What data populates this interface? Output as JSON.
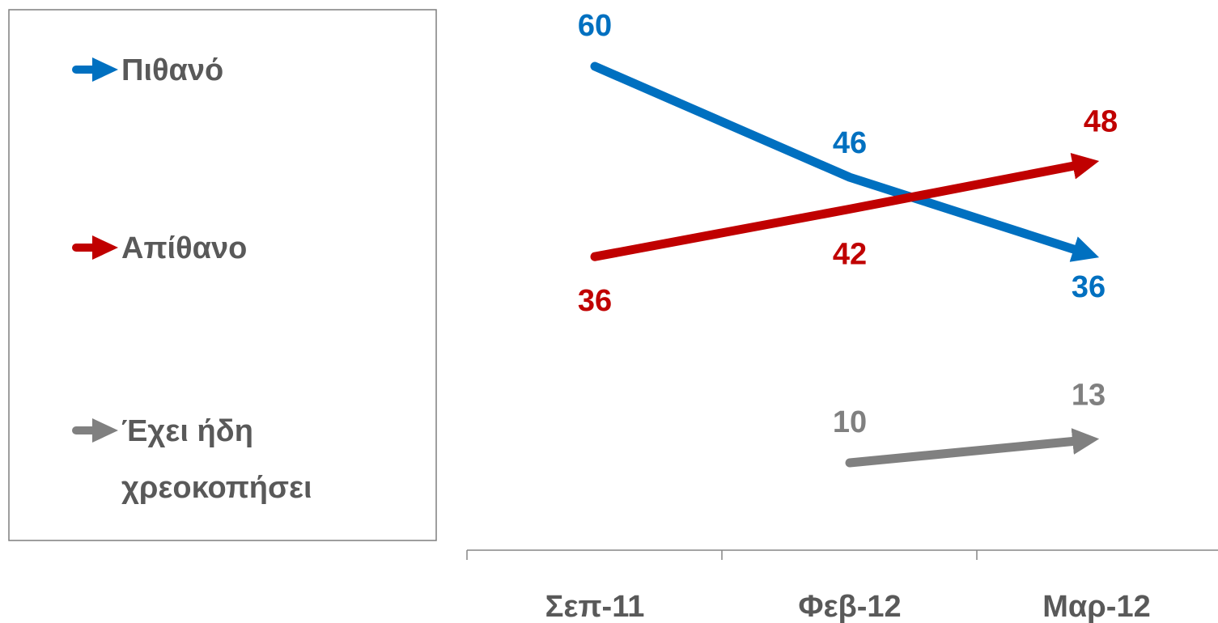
{
  "chart_data": {
    "type": "line",
    "categories": [
      "Σεπ-11",
      "Φεβ-12",
      "Μαρ-12"
    ],
    "series": [
      {
        "name": "Πιθανό",
        "values": [
          60,
          46,
          36
        ],
        "color": "#0070C0"
      },
      {
        "name": "Απίθανο",
        "values": [
          36,
          42,
          48
        ],
        "color": "#C00000"
      },
      {
        "name": "Έχει ήδη χρεοκοπήσει",
        "values": [
          null,
          10,
          13
        ],
        "color": "#808080"
      }
    ],
    "data_labels": {
      "Πιθανό": [
        "60",
        "46",
        "36"
      ],
      "Απίθανο": [
        "36",
        "42",
        "48"
      ],
      "Έχει ήδη χρεοκοπήσει": [
        "",
        "10",
        "13"
      ]
    },
    "legend": {
      "position": "left",
      "entries": [
        {
          "lines": [
            "Πιθανό"
          ],
          "color": "#0070C0"
        },
        {
          "lines": [
            "Απίθανο"
          ],
          "color": "#C00000"
        },
        {
          "lines": [
            "Έχει ήδη",
            "χρεοκοπήσει"
          ],
          "color": "#808080"
        }
      ]
    },
    "ylim": [
      0,
      70
    ],
    "grid": false,
    "title": "",
    "xlabel": "",
    "ylabel": ""
  }
}
